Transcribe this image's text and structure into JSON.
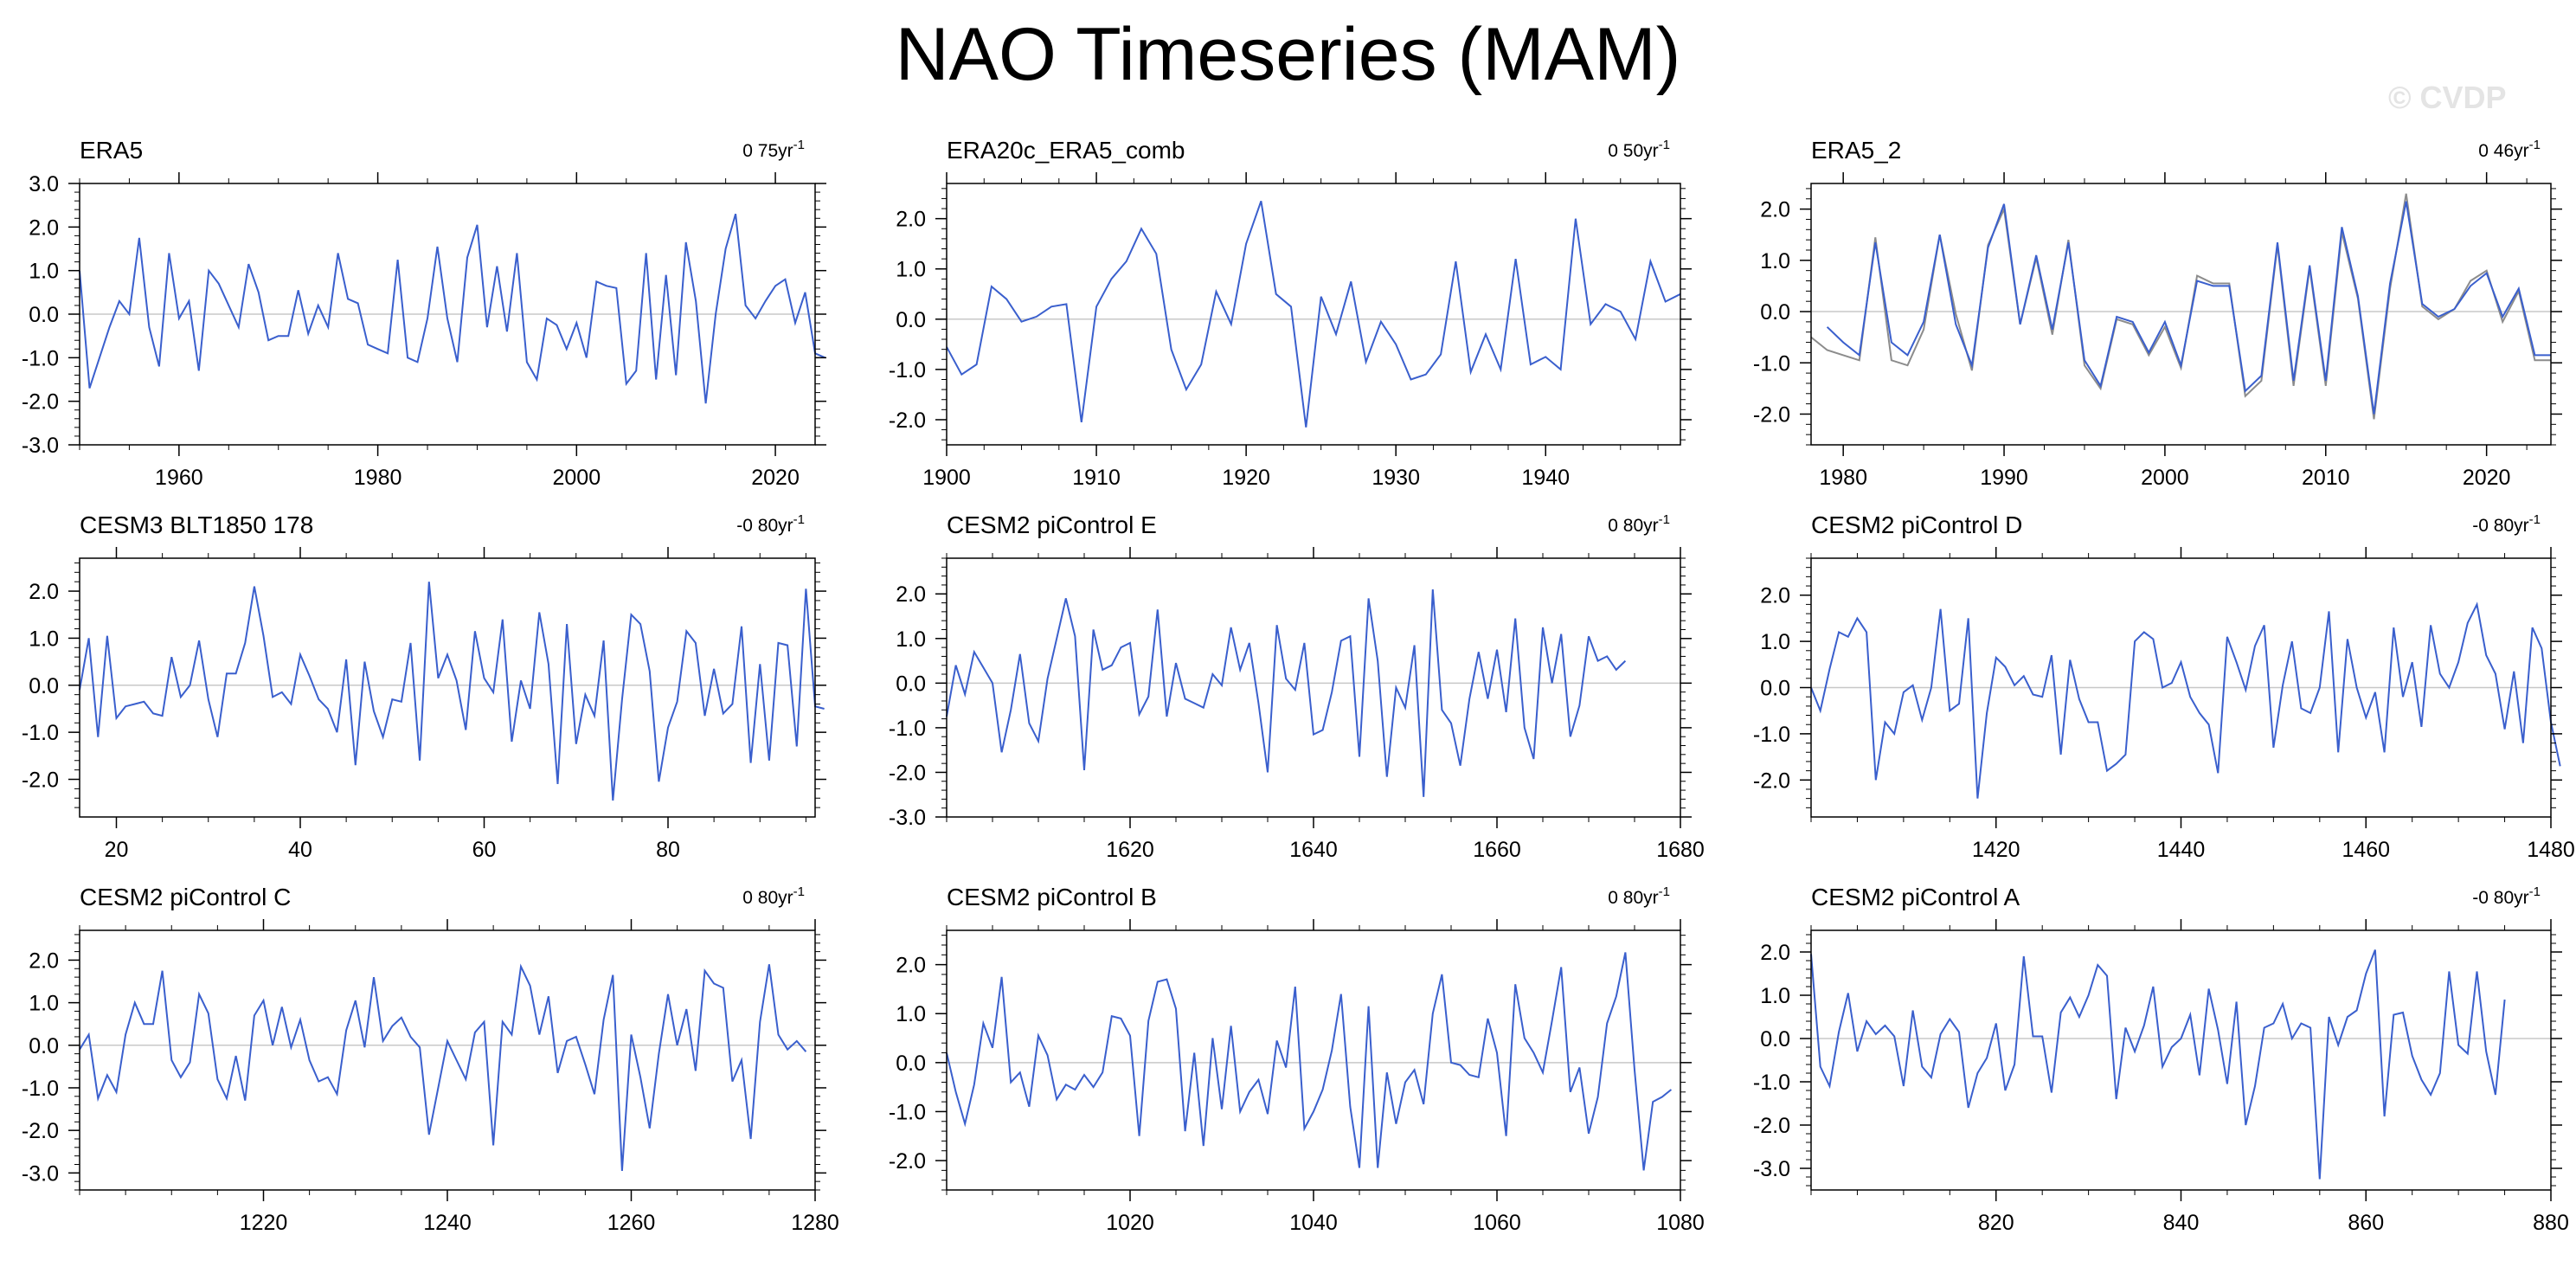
{
  "title": "NAO Timeseries (MAM)",
  "watermark": "© CVDP",
  "colors": {
    "line": "#3a5fcd",
    "second_line": "#8c8c8c",
    "zero": "#c8c8c8",
    "frame": "#000000"
  },
  "chart_data": [
    {
      "type": "line",
      "title": "ERA5",
      "trend": "0 75yr",
      "trend_unit": "-1",
      "xlim": [
        1950,
        2024
      ],
      "ylim": [
        -3,
        3
      ],
      "xticks": [
        1960,
        1980,
        2000,
        2020
      ],
      "yticks": [
        "3.0",
        "2.0",
        "1.0",
        "0.0",
        "-1.0",
        "-2.0",
        "-3.0"
      ],
      "series": [
        {
          "x0": 1950,
          "values": [
            1.0,
            -1.7,
            -1.0,
            -0.3,
            0.3,
            0.0,
            1.75,
            -0.3,
            -1.2,
            1.4,
            -0.1,
            0.3,
            -1.3,
            1.0,
            0.7,
            0.2,
            -0.3,
            1.15,
            0.5,
            -0.6,
            -0.5,
            -0.5,
            0.55,
            -0.45,
            0.2,
            -0.3,
            1.4,
            0.35,
            0.25,
            -0.7,
            -0.8,
            -0.9,
            1.25,
            -1.0,
            -1.1,
            -0.1,
            1.55,
            -0.1,
            -1.1,
            1.3,
            2.05,
            -0.3,
            1.1,
            -0.4,
            1.4,
            -1.1,
            -1.5,
            -0.1,
            -0.25,
            -0.8,
            -0.2,
            -1.0,
            0.75,
            0.65,
            0.6,
            -1.6,
            -1.3,
            1.4,
            -1.5,
            0.9,
            -1.4,
            1.65,
            0.3,
            -2.05,
            0.0,
            1.5,
            2.3,
            0.2,
            -0.1,
            0.3,
            0.65,
            0.8,
            -0.2,
            0.5,
            -0.9,
            -1.0
          ]
        }
      ]
    },
    {
      "type": "line",
      "title": "ERA20c_ERA5_comb",
      "trend": "0 50yr",
      "trend_unit": "-1",
      "xlim": [
        1900,
        1949
      ],
      "ylim": [
        -2.5,
        2.7
      ],
      "xticks": [
        1900,
        1910,
        1920,
        1930,
        1940
      ],
      "yticks": [
        "2.0",
        "1.0",
        "0.0",
        "-1.0",
        "-2.0"
      ],
      "series": [
        {
          "x0": 1900,
          "values": [
            -0.55,
            -1.1,
            -0.9,
            0.65,
            0.4,
            -0.05,
            0.05,
            0.25,
            0.3,
            -2.05,
            0.25,
            0.8,
            1.15,
            1.8,
            1.3,
            -0.6,
            -1.4,
            -0.9,
            0.55,
            -0.1,
            1.5,
            2.35,
            0.5,
            0.25,
            -2.15,
            0.45,
            -0.3,
            0.75,
            -0.85,
            -0.05,
            -0.5,
            -1.2,
            -1.1,
            -0.7,
            1.15,
            -1.05,
            -0.3,
            -1.0,
            1.2,
            -0.9,
            -0.75,
            -1.0,
            2.0,
            -0.1,
            0.3,
            0.15,
            -0.4,
            1.15,
            0.35,
            0.5
          ]
        }
      ]
    },
    {
      "type": "line",
      "title": "ERA5_2",
      "trend": "0 46yr",
      "trend_unit": "-1",
      "xlim": [
        1978,
        2024
      ],
      "ylim": [
        -2.6,
        2.5
      ],
      "xticks": [
        1980,
        1990,
        2000,
        2010,
        2020
      ],
      "yticks": [
        "2.0",
        "1.0",
        "0.0",
        "-1.0",
        "-2.0"
      ],
      "series": [
        {
          "x0": 1979,
          "values": [
            -0.3,
            -0.6,
            -0.85,
            1.35,
            -0.6,
            -0.85,
            -0.2,
            1.5,
            -0.25,
            -1.05,
            1.25,
            2.1,
            -0.25,
            1.1,
            -0.35,
            1.35,
            -0.95,
            -1.45,
            -0.1,
            -0.2,
            -0.8,
            -0.2,
            -1.05,
            0.6,
            0.5,
            0.5,
            -1.55,
            -1.25,
            1.35,
            -1.35,
            0.9,
            -1.35,
            1.65,
            0.3,
            -2.0,
            0.55,
            2.15,
            0.15,
            -0.1,
            0.05,
            0.5,
            0.75,
            -0.1,
            0.45,
            -0.85,
            -0.85
          ]
        },
        {
          "x0": 1978,
          "values": [
            -0.5,
            -0.75,
            -0.85,
            -0.95,
            1.45,
            -0.95,
            -1.05,
            -0.35,
            1.5,
            -0.05,
            -1.15,
            1.3,
            2.0,
            -0.25,
            1.05,
            -0.45,
            1.4,
            -1.05,
            -1.5,
            -0.15,
            -0.25,
            -0.85,
            -0.3,
            -1.1,
            0.7,
            0.55,
            0.55,
            -1.65,
            -1.35,
            1.3,
            -1.45,
            0.85,
            -1.45,
            1.55,
            0.25,
            -2.1,
            0.45,
            2.3,
            0.1,
            -0.15,
            0.05,
            0.6,
            0.8,
            -0.2,
            0.4,
            -0.95,
            -0.95
          ]
        }
      ]
    },
    {
      "type": "line",
      "title": "CESM3 BLT1850 178",
      "trend": "-0 80yr",
      "trend_unit": "-1",
      "xlim": [
        16,
        96
      ],
      "ylim": [
        -2.8,
        2.7
      ],
      "xticks": [
        20,
        40,
        60,
        80
      ],
      "yticks": [
        "2.0",
        "1.0",
        "0.0",
        "-1.0",
        "-2.0"
      ],
      "series": [
        {
          "x0": 16,
          "values": [
            -0.1,
            1.0,
            -1.1,
            1.05,
            -0.7,
            -0.45,
            -0.4,
            -0.35,
            -0.6,
            -0.65,
            0.6,
            -0.25,
            0.0,
            0.95,
            -0.3,
            -1.1,
            0.25,
            0.25,
            0.9,
            2.1,
            1.05,
            -0.25,
            -0.15,
            -0.4,
            0.65,
            0.2,
            -0.3,
            -0.5,
            -1.0,
            0.55,
            -1.7,
            0.5,
            -0.55,
            -1.1,
            -0.3,
            -0.35,
            0.9,
            -1.6,
            2.2,
            0.15,
            0.65,
            0.1,
            -0.95,
            1.15,
            0.15,
            -0.15,
            1.4,
            -1.2,
            0.1,
            -0.5,
            1.55,
            0.45,
            -2.1,
            1.3,
            -1.25,
            -0.2,
            -0.65,
            0.95,
            -2.45,
            -0.3,
            1.5,
            1.3,
            0.3,
            -2.05,
            -0.9,
            -0.35,
            1.15,
            0.9,
            -0.65,
            0.35,
            -0.6,
            -0.4,
            1.25,
            -1.65,
            0.45,
            -1.6,
            0.9,
            0.85,
            -1.3,
            2.05,
            -0.45,
            -0.5
          ]
        }
      ]
    },
    {
      "type": "line",
      "title": "CESM2 piControl E",
      "trend": "0 80yr",
      "trend_unit": "-1",
      "xlim": [
        1600,
        1680
      ],
      "ylim": [
        -3,
        2.8
      ],
      "xticks": [
        1620,
        1640,
        1660,
        1680
      ],
      "yticks": [
        "2.0",
        "1.0",
        "0.0",
        "-1.0",
        "-2.0",
        "-3.0"
      ],
      "series": [
        {
          "x0": 1600,
          "values": [
            -0.75,
            0.4,
            -0.25,
            0.7,
            0.35,
            0.0,
            -1.55,
            -0.6,
            0.65,
            -0.9,
            -1.3,
            0.1,
            1.0,
            1.9,
            1.05,
            -1.95,
            1.2,
            0.3,
            0.4,
            0.8,
            0.9,
            -0.7,
            -0.3,
            1.65,
            -0.75,
            0.45,
            -0.35,
            -0.45,
            -0.55,
            0.2,
            -0.05,
            1.25,
            0.3,
            0.9,
            -0.45,
            -2.0,
            1.3,
            0.1,
            -0.15,
            0.9,
            -1.15,
            -1.05,
            -0.2,
            0.95,
            1.05,
            -1.65,
            1.9,
            0.5,
            -2.1,
            -0.1,
            -0.55,
            0.85,
            -2.55,
            2.1,
            -0.6,
            -0.9,
            -1.85,
            -0.35,
            0.7,
            -0.35,
            0.75,
            -0.65,
            1.45,
            -1.0,
            -1.7,
            1.25,
            0.0,
            1.1,
            -1.2,
            -0.5,
            1.05,
            0.5,
            0.6,
            0.3,
            0.5
          ]
        }
      ]
    },
    {
      "type": "line",
      "title": "CESM2 piControl D",
      "trend": "-0 80yr",
      "trend_unit": "-1",
      "xlim": [
        1400,
        1480
      ],
      "ylim": [
        -2.8,
        2.8
      ],
      "xticks": [
        1420,
        1440,
        1460,
        1480
      ],
      "yticks": [
        "2.0",
        "1.0",
        "0.0",
        "-1.0",
        "-2.0"
      ],
      "series": [
        {
          "x0": 1400,
          "values": [
            0.0,
            -0.5,
            0.4,
            1.2,
            1.1,
            1.5,
            1.2,
            -2.0,
            -0.75,
            -1.0,
            -0.1,
            0.05,
            -0.7,
            0.0,
            1.7,
            -0.5,
            -0.35,
            1.5,
            -2.4,
            -0.55,
            0.65,
            0.45,
            0.05,
            0.25,
            -0.15,
            -0.2,
            0.7,
            -1.45,
            0.6,
            -0.25,
            -0.75,
            -0.75,
            -1.8,
            -1.65,
            -1.45,
            1.0,
            1.2,
            1.05,
            0.0,
            0.1,
            0.55,
            -0.2,
            -0.55,
            -0.8,
            -1.85,
            1.1,
            0.55,
            -0.05,
            0.9,
            1.35,
            -1.3,
            0.05,
            1.0,
            -0.45,
            -0.55,
            0.0,
            1.65,
            -1.4,
            1.05,
            0.0,
            -0.65,
            -0.1,
            -1.4,
            1.3,
            -0.2,
            0.55,
            -0.85,
            1.35,
            0.3,
            0.0,
            0.55,
            1.4,
            1.8,
            0.7,
            0.3,
            -0.9,
            0.35,
            -1.2,
            1.3,
            0.85,
            -0.75,
            -1.7
          ]
        }
      ]
    },
    {
      "type": "line",
      "title": "CESM2 piControl C",
      "trend": "0 80yr",
      "trend_unit": "-1",
      "xlim": [
        1200,
        1280
      ],
      "ylim": [
        -3.4,
        2.7
      ],
      "xticks": [
        1220,
        1240,
        1260,
        1280
      ],
      "yticks": [
        "2.0",
        "1.0",
        "0.0",
        "-1.0",
        "-2.0",
        "-3.0"
      ],
      "series": [
        {
          "x0": 1200,
          "values": [
            -0.1,
            0.25,
            -1.25,
            -0.7,
            -1.1,
            0.25,
            1.0,
            0.5,
            0.5,
            1.75,
            -0.35,
            -0.75,
            -0.4,
            1.2,
            0.75,
            -0.8,
            -1.25,
            -0.25,
            -1.3,
            0.7,
            1.05,
            0.0,
            0.9,
            -0.05,
            0.6,
            -0.35,
            -0.85,
            -0.75,
            -1.15,
            0.35,
            1.05,
            -0.05,
            1.6,
            0.1,
            0.45,
            0.65,
            0.2,
            -0.05,
            -2.1,
            -1.0,
            0.1,
            -0.35,
            -0.8,
            0.3,
            0.55,
            -2.35,
            0.55,
            0.25,
            1.85,
            1.4,
            0.25,
            1.15,
            -0.65,
            0.1,
            0.2,
            -0.45,
            -1.15,
            0.6,
            1.65,
            -2.95,
            0.25,
            -0.75,
            -1.95,
            -0.2,
            1.2,
            0.0,
            0.85,
            -0.6,
            1.75,
            1.45,
            1.35,
            -0.85,
            -0.35,
            -2.2,
            0.55,
            1.9,
            0.25,
            -0.1,
            0.1,
            -0.15
          ]
        }
      ]
    },
    {
      "type": "line",
      "title": "CESM2 piControl B",
      "trend": "0 80yr",
      "trend_unit": "-1",
      "xlim": [
        1000,
        1080
      ],
      "ylim": [
        -2.6,
        2.7
      ],
      "xticks": [
        1020,
        1040,
        1060,
        1080
      ],
      "yticks": [
        "2.0",
        "1.0",
        "0.0",
        "-1.0",
        "-2.0"
      ],
      "series": [
        {
          "x0": 1000,
          "values": [
            0.2,
            -0.6,
            -1.25,
            -0.45,
            0.8,
            0.3,
            1.75,
            -0.4,
            -0.2,
            -0.9,
            0.55,
            0.15,
            -0.75,
            -0.45,
            -0.55,
            -0.25,
            -0.5,
            -0.2,
            0.95,
            0.9,
            0.55,
            -1.5,
            0.85,
            1.65,
            1.7,
            1.1,
            -1.4,
            0.2,
            -1.7,
            0.5,
            -0.95,
            0.75,
            -1.0,
            -0.6,
            -0.35,
            -1.05,
            0.45,
            -0.1,
            1.55,
            -1.35,
            -1.0,
            -0.55,
            0.25,
            1.4,
            -0.9,
            -2.15,
            1.15,
            -2.15,
            -0.2,
            -1.25,
            -0.4,
            -0.15,
            -0.85,
            1.0,
            1.8,
            0.0,
            -0.05,
            -0.25,
            -0.3,
            0.9,
            0.2,
            -1.5,
            1.6,
            0.5,
            0.2,
            -0.2,
            0.85,
            1.95,
            -0.6,
            -0.1,
            -1.45,
            -0.7,
            0.8,
            1.35,
            2.25,
            -0.15,
            -2.2,
            -0.8,
            -0.7,
            -0.55
          ]
        }
      ]
    },
    {
      "type": "line",
      "title": "CESM2 piControl A",
      "trend": "-0 80yr",
      "trend_unit": "-1",
      "xlim": [
        800,
        880
      ],
      "ylim": [
        -3.5,
        2.5
      ],
      "xticks": [
        820,
        840,
        860,
        880
      ],
      "yticks": [
        "2.0",
        "1.0",
        "0.0",
        "-1.0",
        "-2.0",
        "-3.0"
      ],
      "series": [
        {
          "x0": 800,
          "values": [
            1.95,
            -0.65,
            -1.1,
            0.15,
            1.05,
            -0.3,
            0.4,
            0.1,
            0.3,
            0.05,
            -1.1,
            0.65,
            -0.65,
            -0.9,
            0.1,
            0.45,
            0.15,
            -1.6,
            -0.8,
            -0.45,
            0.35,
            -1.2,
            -0.6,
            1.9,
            0.05,
            0.05,
            -1.25,
            0.6,
            0.95,
            0.5,
            1.0,
            1.7,
            1.45,
            -1.4,
            0.25,
            -0.3,
            0.3,
            1.2,
            -0.65,
            -0.2,
            0.0,
            0.55,
            -0.85,
            1.15,
            0.2,
            -1.05,
            0.85,
            -2.0,
            -1.1,
            0.25,
            0.35,
            0.8,
            0.0,
            0.35,
            0.25,
            -3.25,
            0.5,
            -0.15,
            0.5,
            0.65,
            1.5,
            2.05,
            -1.8,
            0.55,
            0.6,
            -0.4,
            -0.95,
            -1.3,
            -0.8,
            1.55,
            -0.15,
            -0.35,
            1.55,
            -0.3,
            -1.3,
            0.9
          ]
        }
      ]
    }
  ]
}
